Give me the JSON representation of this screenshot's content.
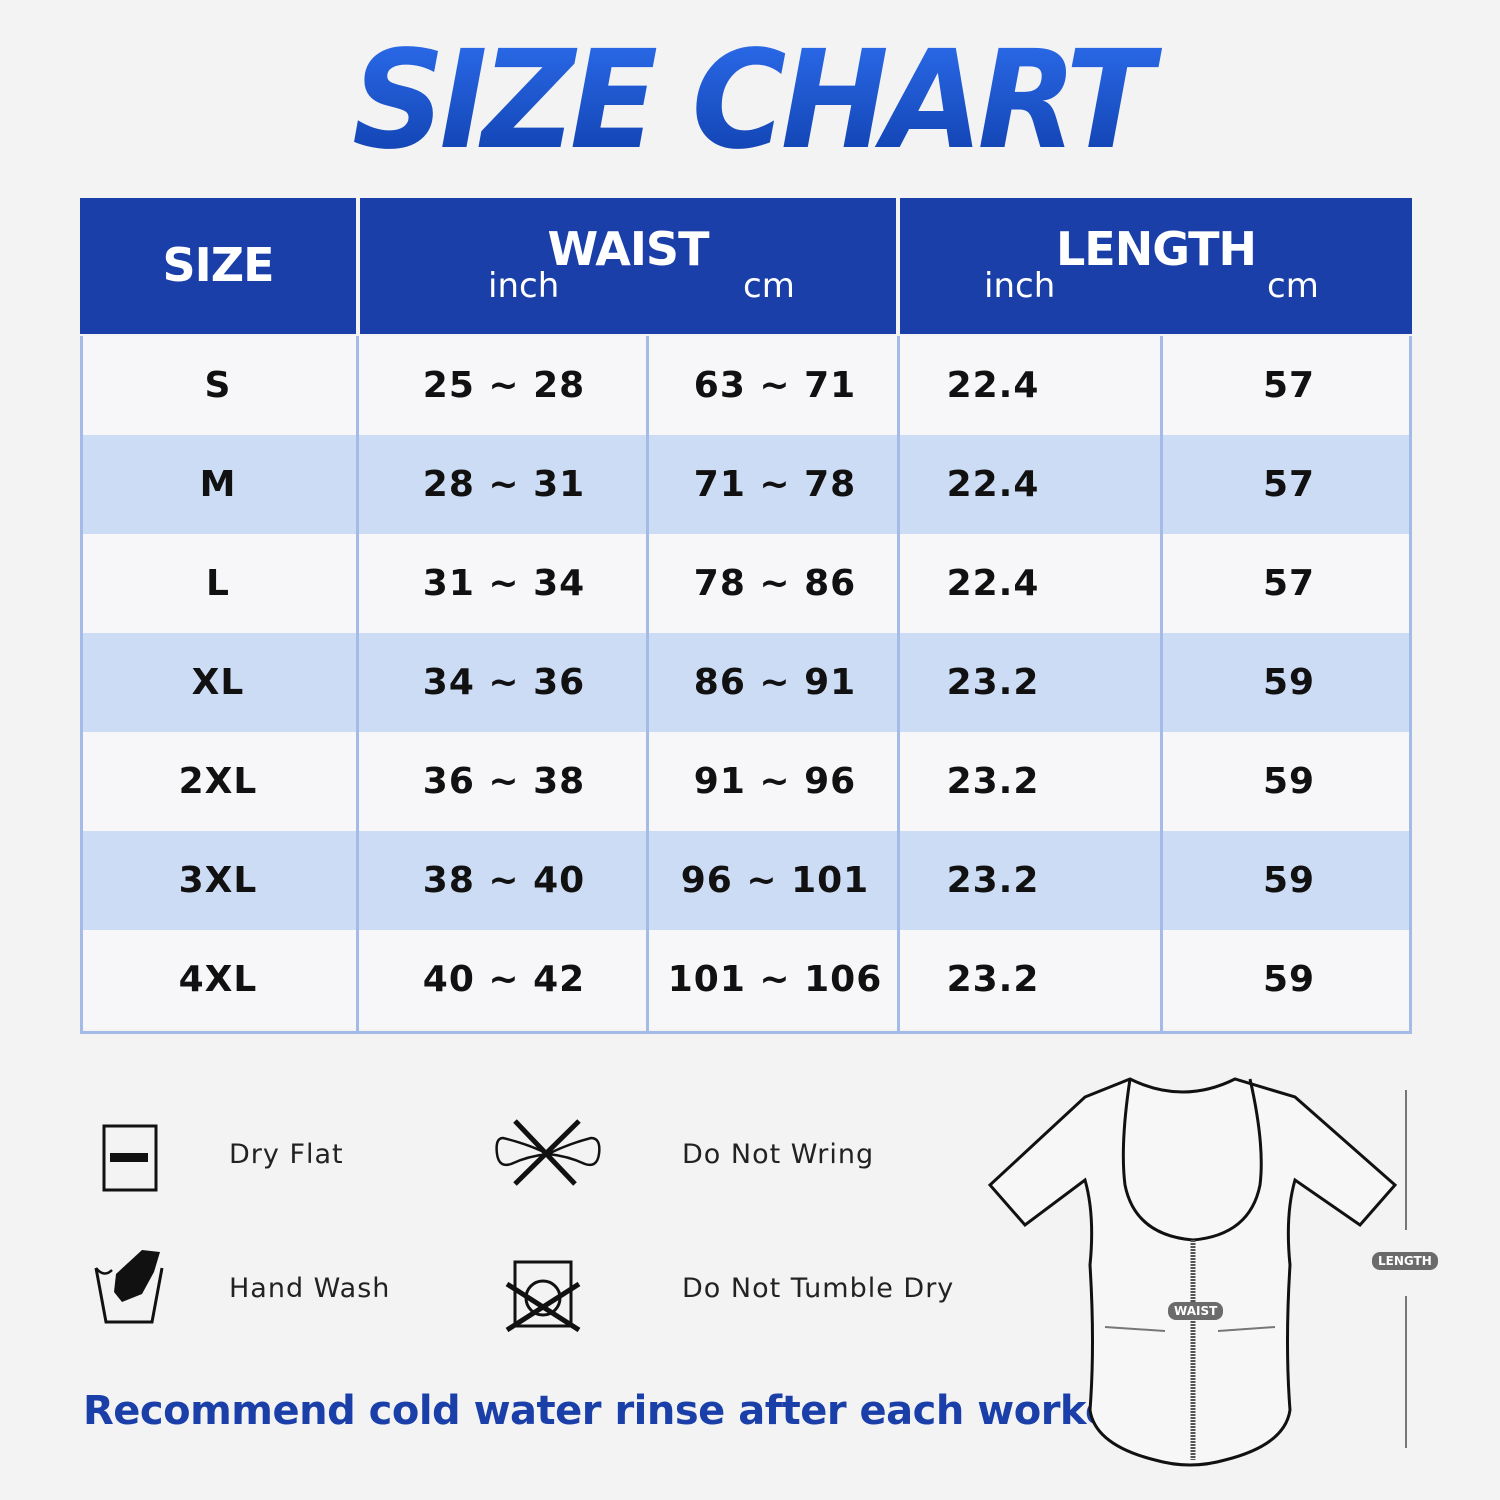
{
  "title": "SIZE CHART",
  "table": {
    "headers": {
      "size": "SIZE",
      "waist": "WAIST",
      "length": "LENGTH",
      "inch": "inch",
      "cm": "cm"
    },
    "rows": [
      {
        "size": "S",
        "waist_inch": "25 ~ 28",
        "waist_cm": "63 ~ 71",
        "length_inch": "22.4",
        "length_cm": "57"
      },
      {
        "size": "M",
        "waist_inch": "28 ~ 31",
        "waist_cm": "71 ~ 78",
        "length_inch": "22.4",
        "length_cm": "57"
      },
      {
        "size": "L",
        "waist_inch": "31 ~ 34",
        "waist_cm": "78 ~ 86",
        "length_inch": "22.4",
        "length_cm": "57"
      },
      {
        "size": "XL",
        "waist_inch": "34 ~ 36",
        "waist_cm": "86 ~ 91",
        "length_inch": "23.2",
        "length_cm": "59"
      },
      {
        "size": "2XL",
        "waist_inch": "36 ~ 38",
        "waist_cm": "91 ~ 96",
        "length_inch": "23.2",
        "length_cm": "59"
      },
      {
        "size": "3XL",
        "waist_inch": "38 ~ 40",
        "waist_cm": "96 ~ 101",
        "length_inch": "23.2",
        "length_cm": "59"
      },
      {
        "size": "4XL",
        "waist_inch": "40 ~ 42",
        "waist_cm": "101 ~ 106",
        "length_inch": "23.2",
        "length_cm": "59"
      }
    ]
  },
  "care": [
    {
      "label": "Dry Flat",
      "icon": "dry-flat-icon"
    },
    {
      "label": "Do Not Wring",
      "icon": "do-not-wring-icon"
    },
    {
      "label": "Hand Wash",
      "icon": "hand-wash-icon"
    },
    {
      "label": "Do Not Tumble Dry",
      "icon": "do-not-tumble-dry-icon"
    }
  ],
  "note": "Recommend cold water rinse after each workout.",
  "diagram": {
    "waist_label": "WAIST",
    "length_label": "LENGTH"
  },
  "colors": {
    "header": "#1a3fa8",
    "row_alt": "#cddcf5",
    "row": "#f7f7f9",
    "border": "#a4bbe8"
  }
}
